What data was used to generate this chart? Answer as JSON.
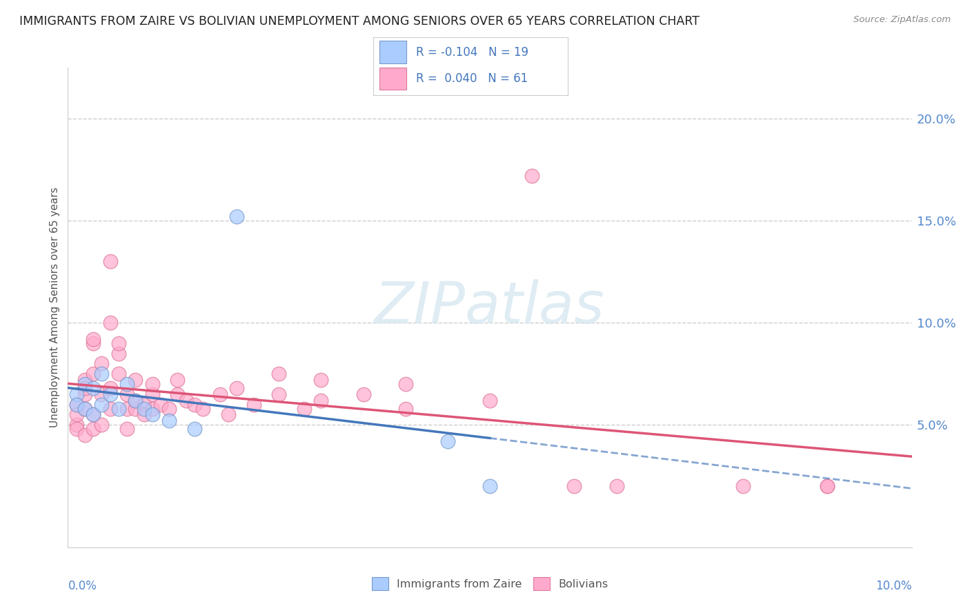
{
  "title": "IMMIGRANTS FROM ZAIRE VS BOLIVIAN UNEMPLOYMENT AMONG SENIORS OVER 65 YEARS CORRELATION CHART",
  "source": "Source: ZipAtlas.com",
  "ylabel": "Unemployment Among Seniors over 65 years",
  "xlim": [
    0.0,
    0.1
  ],
  "ylim": [
    -0.01,
    0.225
  ],
  "yticks": [
    0.05,
    0.1,
    0.15,
    0.2
  ],
  "ytick_labels": [
    "5.0%",
    "10.0%",
    "15.0%",
    "20.0%"
  ],
  "zaire_color": "#aaccff",
  "zaire_edge_color": "#7799cc",
  "bolivian_color": "#ffaacc",
  "bolivian_edge_color": "#dd7799",
  "zaire_line_color": "#4477bb",
  "bolivian_line_color": "#dd5577",
  "watermark_text": "ZIPatlas",
  "legend_zaire": "R = -0.104   N = 19",
  "legend_bolivian": "R =  0.040   N = 61",
  "zaire_scatter": [
    [
      0.001,
      0.065
    ],
    [
      0.001,
      0.06
    ],
    [
      0.002,
      0.058
    ],
    [
      0.002,
      0.07
    ],
    [
      0.003,
      0.068
    ],
    [
      0.003,
      0.055
    ],
    [
      0.004,
      0.075
    ],
    [
      0.004,
      0.06
    ],
    [
      0.005,
      0.065
    ],
    [
      0.006,
      0.058
    ],
    [
      0.007,
      0.07
    ],
    [
      0.008,
      0.062
    ],
    [
      0.009,
      0.058
    ],
    [
      0.01,
      0.055
    ],
    [
      0.012,
      0.052
    ],
    [
      0.015,
      0.048
    ],
    [
      0.02,
      0.152
    ],
    [
      0.045,
      0.042
    ],
    [
      0.05,
      0.02
    ]
  ],
  "bolivian_scatter": [
    [
      0.001,
      0.05
    ],
    [
      0.001,
      0.06
    ],
    [
      0.001,
      0.055
    ],
    [
      0.001,
      0.048
    ],
    [
      0.002,
      0.045
    ],
    [
      0.002,
      0.058
    ],
    [
      0.002,
      0.065
    ],
    [
      0.002,
      0.072
    ],
    [
      0.002,
      0.068
    ],
    [
      0.003,
      0.048
    ],
    [
      0.003,
      0.055
    ],
    [
      0.003,
      0.075
    ],
    [
      0.003,
      0.09
    ],
    [
      0.003,
      0.092
    ],
    [
      0.004,
      0.05
    ],
    [
      0.004,
      0.065
    ],
    [
      0.004,
      0.08
    ],
    [
      0.005,
      0.058
    ],
    [
      0.005,
      0.068
    ],
    [
      0.005,
      0.1
    ],
    [
      0.005,
      0.13
    ],
    [
      0.006,
      0.075
    ],
    [
      0.006,
      0.085
    ],
    [
      0.006,
      0.09
    ],
    [
      0.007,
      0.058
    ],
    [
      0.007,
      0.065
    ],
    [
      0.007,
      0.048
    ],
    [
      0.008,
      0.058
    ],
    [
      0.008,
      0.072
    ],
    [
      0.008,
      0.062
    ],
    [
      0.009,
      0.06
    ],
    [
      0.009,
      0.055
    ],
    [
      0.01,
      0.065
    ],
    [
      0.01,
      0.058
    ],
    [
      0.01,
      0.07
    ],
    [
      0.011,
      0.06
    ],
    [
      0.012,
      0.058
    ],
    [
      0.013,
      0.065
    ],
    [
      0.013,
      0.072
    ],
    [
      0.014,
      0.062
    ],
    [
      0.015,
      0.06
    ],
    [
      0.016,
      0.058
    ],
    [
      0.018,
      0.065
    ],
    [
      0.019,
      0.055
    ],
    [
      0.02,
      0.068
    ],
    [
      0.022,
      0.06
    ],
    [
      0.025,
      0.065
    ],
    [
      0.025,
      0.075
    ],
    [
      0.028,
      0.058
    ],
    [
      0.03,
      0.062
    ],
    [
      0.03,
      0.072
    ],
    [
      0.035,
      0.065
    ],
    [
      0.04,
      0.07
    ],
    [
      0.04,
      0.058
    ],
    [
      0.05,
      0.062
    ],
    [
      0.055,
      0.172
    ],
    [
      0.06,
      0.02
    ],
    [
      0.065,
      0.02
    ],
    [
      0.08,
      0.02
    ],
    [
      0.09,
      0.02
    ],
    [
      0.09,
      0.02
    ]
  ]
}
